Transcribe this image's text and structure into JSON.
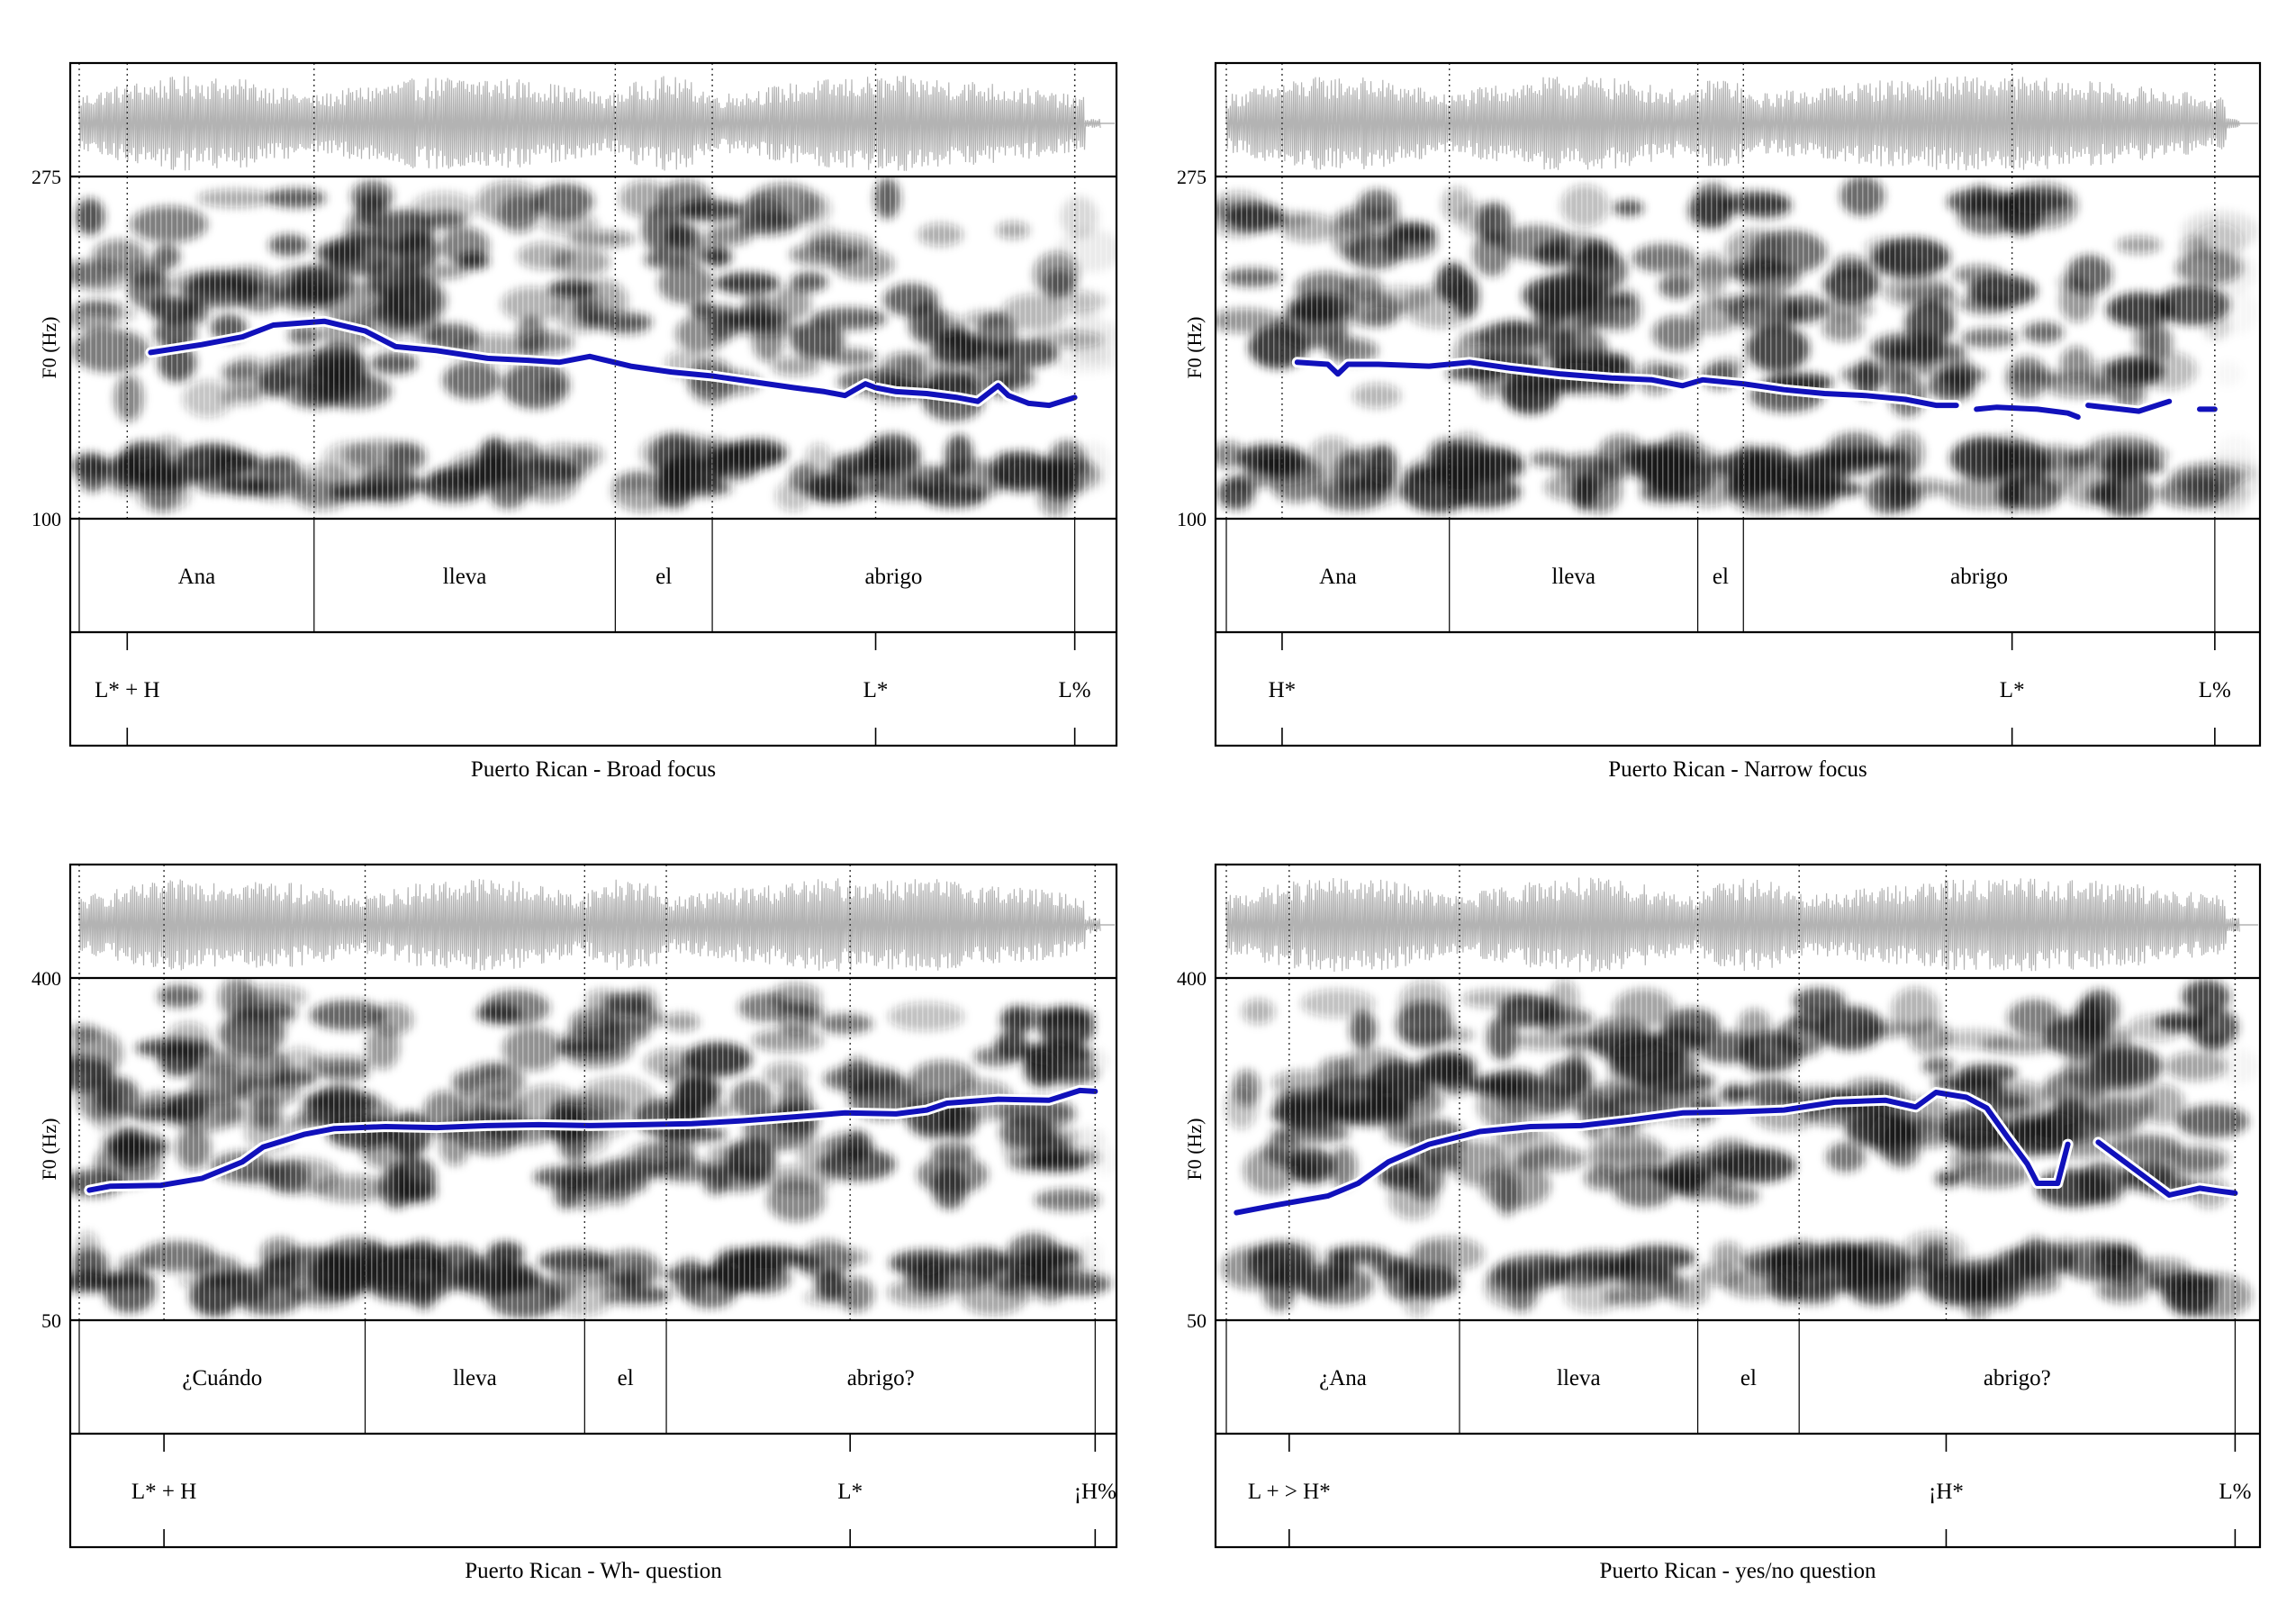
{
  "panels": [
    {
      "id": "broad",
      "caption": "Puerto Rican - Broad focus",
      "ymax": "275",
      "ymin": "100",
      "ylabel": "F0 (Hz)",
      "words": [
        {
          "text": "Ana",
          "start": 0.0,
          "end": 0.23
        },
        {
          "text": "lleva",
          "start": 0.23,
          "end": 0.525
        },
        {
          "text": "el",
          "start": 0.525,
          "end": 0.62
        },
        {
          "text": "abrigo",
          "start": 0.62,
          "end": 0.975
        }
      ],
      "tones": [
        {
          "text": "L* + H",
          "t": 0.047
        },
        {
          "text": "L*",
          "t": 0.78
        },
        {
          "text": "L%",
          "t": 0.975
        }
      ],
      "f0_hz": [
        [
          0.07,
          185
        ],
        [
          0.12,
          189
        ],
        [
          0.16,
          193
        ],
        [
          0.19,
          199
        ],
        [
          0.24,
          201
        ],
        [
          0.28,
          196
        ],
        [
          0.31,
          188
        ],
        [
          0.35,
          186
        ],
        [
          0.4,
          182
        ],
        [
          0.44,
          181
        ],
        [
          0.47,
          180
        ],
        [
          0.5,
          183
        ],
        [
          0.54,
          178
        ],
        [
          0.58,
          175
        ],
        [
          0.62,
          173
        ],
        [
          0.66,
          170
        ],
        [
          0.7,
          167
        ],
        [
          0.73,
          165
        ],
        [
          0.75,
          163
        ],
        [
          0.76,
          166
        ],
        [
          0.77,
          169
        ],
        [
          0.78,
          167
        ],
        [
          0.8,
          165
        ],
        [
          0.83,
          164
        ],
        [
          0.86,
          162
        ],
        [
          0.88,
          160
        ],
        [
          0.9,
          168
        ],
        [
          0.91,
          163
        ],
        [
          0.93,
          159
        ],
        [
          0.95,
          158
        ],
        [
          0.975,
          162
        ]
      ],
      "f0_gaps": []
    },
    {
      "id": "narrow",
      "caption": "Puerto Rican - Narrow focus",
      "ymax": "275",
      "ymin": "100",
      "ylabel": "F0 (Hz)",
      "words": [
        {
          "text": "Ana",
          "start": 0.0,
          "end": 0.22
        },
        {
          "text": "lleva",
          "start": 0.22,
          "end": 0.465
        },
        {
          "text": "el",
          "start": 0.465,
          "end": 0.51
        },
        {
          "text": "abrigo",
          "start": 0.51,
          "end": 0.975
        }
      ],
      "tones": [
        {
          "text": "H*",
          "t": 0.055
        },
        {
          "text": "L*",
          "t": 0.775
        },
        {
          "text": "L%",
          "t": 0.975
        }
      ],
      "f0_hz": [
        [
          0.07,
          180
        ],
        [
          0.1,
          179
        ],
        [
          0.11,
          174
        ],
        [
          0.12,
          179
        ],
        [
          0.15,
          179
        ],
        [
          0.2,
          178
        ],
        [
          0.24,
          180
        ],
        [
          0.28,
          177
        ],
        [
          0.33,
          174
        ],
        [
          0.38,
          172
        ],
        [
          0.42,
          171
        ],
        [
          0.45,
          168
        ],
        [
          0.47,
          171
        ],
        [
          0.51,
          169
        ],
        [
          0.55,
          166
        ],
        [
          0.59,
          164
        ],
        [
          0.63,
          163
        ],
        [
          0.67,
          161
        ],
        [
          0.7,
          158
        ],
        [
          0.72,
          158
        ],
        [
          0.74,
          156
        ],
        [
          0.76,
          157
        ],
        [
          0.8,
          156
        ],
        [
          0.83,
          154
        ],
        [
          0.84,
          152
        ],
        [
          0.85,
          158
        ],
        [
          0.9,
          155
        ],
        [
          0.93,
          160
        ],
        [
          0.96,
          156
        ],
        [
          0.975,
          156
        ]
      ],
      "f0_gaps": [
        20,
        25,
        28
      ]
    },
    {
      "id": "wh",
      "caption": "Puerto Rican - Wh- question",
      "ymax": "400",
      "ymin": "50",
      "ylabel": "F0 (Hz)",
      "words": [
        {
          "text": "¿Cuándo",
          "start": 0.0,
          "end": 0.28
        },
        {
          "text": "lleva",
          "start": 0.28,
          "end": 0.495
        },
        {
          "text": "el",
          "start": 0.495,
          "end": 0.575
        },
        {
          "text": "abrigo?",
          "start": 0.575,
          "end": 0.995
        }
      ],
      "tones": [
        {
          "text": "L* + H",
          "t": 0.083
        },
        {
          "text": "L*",
          "t": 0.755
        },
        {
          "text": "¡H%",
          "t": 0.995
        }
      ],
      "f0_hz": [
        [
          0.01,
          183
        ],
        [
          0.03,
          187
        ],
        [
          0.08,
          188
        ],
        [
          0.12,
          195
        ],
        [
          0.16,
          212
        ],
        [
          0.18,
          227
        ],
        [
          0.22,
          240
        ],
        [
          0.25,
          246
        ],
        [
          0.3,
          248
        ],
        [
          0.35,
          247
        ],
        [
          0.4,
          249
        ],
        [
          0.45,
          250
        ],
        [
          0.5,
          249
        ],
        [
          0.55,
          250
        ],
        [
          0.6,
          251
        ],
        [
          0.65,
          254
        ],
        [
          0.7,
          258
        ],
        [
          0.75,
          262
        ],
        [
          0.8,
          261
        ],
        [
          0.83,
          265
        ],
        [
          0.85,
          272
        ],
        [
          0.9,
          276
        ],
        [
          0.95,
          275
        ],
        [
          0.98,
          285
        ],
        [
          0.995,
          284
        ]
      ],
      "f0_gaps": []
    },
    {
      "id": "yesno",
      "caption": "Puerto Rican - yes/no question",
      "ymax": "400",
      "ymin": "50",
      "ylabel": "F0 (Hz)",
      "words": [
        {
          "text": "¿Ana",
          "start": 0.0,
          "end": 0.23
        },
        {
          "text": "lleva",
          "start": 0.23,
          "end": 0.465
        },
        {
          "text": "el",
          "start": 0.465,
          "end": 0.565
        },
        {
          "text": "abrigo?",
          "start": 0.565,
          "end": 0.995
        }
      ],
      "tones": [
        {
          "text": "L + > H*",
          "t": 0.062
        },
        {
          "text": "¡H*",
          "t": 0.71
        },
        {
          "text": "L%",
          "t": 0.995
        }
      ],
      "f0_hz": [
        [
          0.01,
          160
        ],
        [
          0.05,
          168
        ],
        [
          0.1,
          177
        ],
        [
          0.13,
          190
        ],
        [
          0.16,
          212
        ],
        [
          0.2,
          230
        ],
        [
          0.25,
          243
        ],
        [
          0.3,
          248
        ],
        [
          0.35,
          249
        ],
        [
          0.4,
          255
        ],
        [
          0.45,
          262
        ],
        [
          0.5,
          263
        ],
        [
          0.55,
          265
        ],
        [
          0.6,
          273
        ],
        [
          0.65,
          275
        ],
        [
          0.68,
          268
        ],
        [
          0.7,
          283
        ],
        [
          0.73,
          278
        ],
        [
          0.75,
          267
        ],
        [
          0.77,
          238
        ],
        [
          0.79,
          210
        ],
        [
          0.8,
          190
        ],
        [
          0.82,
          190
        ],
        [
          0.83,
          230
        ],
        [
          0.86,
          232
        ],
        [
          0.93,
          178
        ],
        [
          0.96,
          185
        ],
        [
          0.98,
          182
        ],
        [
          0.995,
          180
        ]
      ],
      "f0_gaps": [
        24
      ]
    }
  ],
  "colors": {
    "frame": "#000000",
    "waveform": "#b3b3b3",
    "spectrogram": "#1a1a1a",
    "f0_contour": "#1111bb",
    "f0_outline": "#ffffff",
    "boundary_dotted": "#333333"
  }
}
